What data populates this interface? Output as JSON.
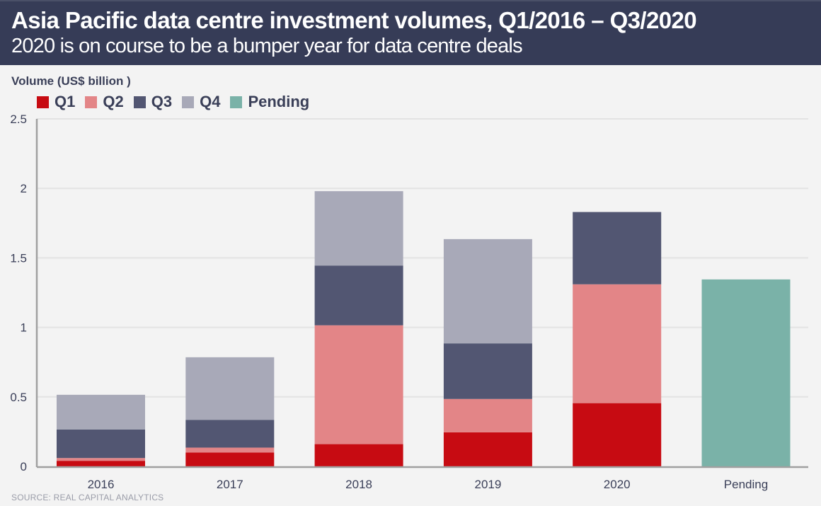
{
  "header": {
    "title": "Asia Pacific data centre investment volumes, Q1/2016 – Q3/2020",
    "subtitle": "2020 is on course to be a bumper year for data centre deals"
  },
  "source": "SOURCE: REAL CAPITAL ANALYTICS",
  "colors": {
    "header_bg": "#363c57",
    "Q1": "#c70b12",
    "Q2": "#e38587",
    "Q3": "#525672",
    "Q4": "#a8a9b8",
    "Pending": "#7ab2a8"
  },
  "chart_data": {
    "type": "bar",
    "stacked": true,
    "title": "Asia Pacific data centre investment volumes, Q1/2016 – Q3/2020",
    "subtitle": "2020 is on course to be a bumper year for data centre deals",
    "xlabel": "",
    "ylabel": "Volume (US$ billion )",
    "ylim": [
      0,
      2.5
    ],
    "yticks": [
      0,
      0.5,
      1,
      1.5,
      2,
      2.5
    ],
    "ytick_labels": [
      "0",
      "0.5",
      "1",
      "1.5",
      "2",
      "2.5"
    ],
    "grid": true,
    "legend_position": "top-left",
    "categories": [
      "2016",
      "2017",
      "2018",
      "2019",
      "2020",
      "Pending"
    ],
    "series": [
      {
        "name": "Q1",
        "values": [
          0.04,
          0.1,
          0.16,
          0.245,
          0.455,
          0
        ]
      },
      {
        "name": "Q2",
        "values": [
          0.02,
          0.035,
          0.855,
          0.24,
          0.855,
          0
        ]
      },
      {
        "name": "Q3",
        "values": [
          0.205,
          0.2,
          0.43,
          0.4,
          0.52,
          0
        ]
      },
      {
        "name": "Q4",
        "values": [
          0.25,
          0.45,
          0.535,
          0.75,
          0,
          0
        ]
      },
      {
        "name": "Pending",
        "values": [
          0,
          0,
          0,
          0,
          0,
          1.345
        ]
      }
    ]
  }
}
